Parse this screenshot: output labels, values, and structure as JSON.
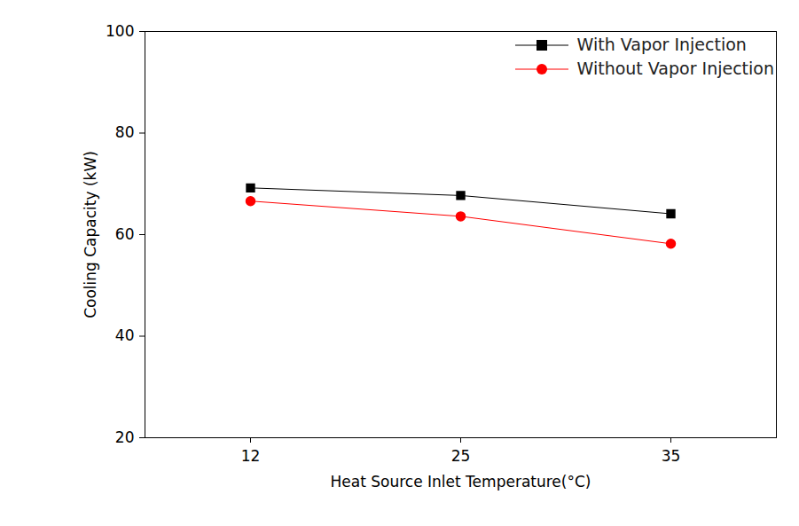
{
  "chart_data": {
    "type": "line",
    "x_label": "Heat Source Inlet Temperature(°C)",
    "y_label": "Cooling Capacity (kW)",
    "categories": [
      "12",
      "25",
      "35"
    ],
    "series": [
      {
        "name": "With Vapor Injection",
        "color": "#000000",
        "marker": "square",
        "values": [
          69.2,
          67.7,
          64.1
        ]
      },
      {
        "name": "Without Vapor Injection",
        "color": "#ff0000",
        "marker": "circle",
        "values": [
          66.6,
          63.6,
          58.2
        ]
      }
    ],
    "ylim": [
      20,
      100
    ],
    "yticks": [
      20,
      40,
      60,
      80,
      100
    ],
    "legend": "upper right"
  }
}
